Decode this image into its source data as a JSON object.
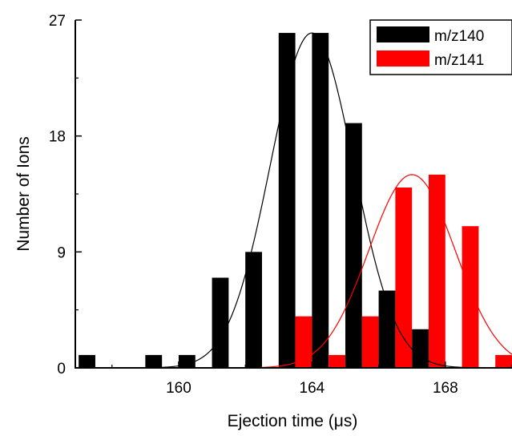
{
  "chart_data": {
    "type": "bar",
    "xlabel": "Ejection time (μs)",
    "ylabel": "Number of Ions",
    "xlim": [
      156.9,
      170.0
    ],
    "ylim": [
      0,
      27
    ],
    "xticks": [
      160,
      164,
      168
    ],
    "xtick_labels": [
      "160",
      "164",
      "168"
    ],
    "yticks": [
      0,
      9,
      18,
      27
    ],
    "ytick_labels": [
      "0",
      "9",
      "18",
      "27"
    ],
    "bar_width": 0.5,
    "grid": false,
    "legend_position": "top-right",
    "series": [
      {
        "name": "m/z140",
        "color": "#000000",
        "x": [
          157.25,
          159.25,
          160.25,
          161.25,
          162.25,
          163.25,
          164.25,
          165.25,
          166.25,
          167.25
        ],
        "values": [
          1,
          1,
          1,
          7,
          9,
          26,
          26,
          19,
          6,
          3
        ],
        "fit": {
          "center": 164.0,
          "sigma": 1.25,
          "amplitude": 26
        }
      },
      {
        "name": "m/z141",
        "color": "#ff0000",
        "x": [
          163.75,
          164.75,
          165.75,
          166.75,
          167.75,
          168.75,
          169.75
        ],
        "values": [
          4,
          1,
          4,
          14,
          15,
          11,
          1
        ],
        "fit": {
          "center": 167.0,
          "sigma": 1.3,
          "amplitude": 15
        }
      }
    ]
  }
}
